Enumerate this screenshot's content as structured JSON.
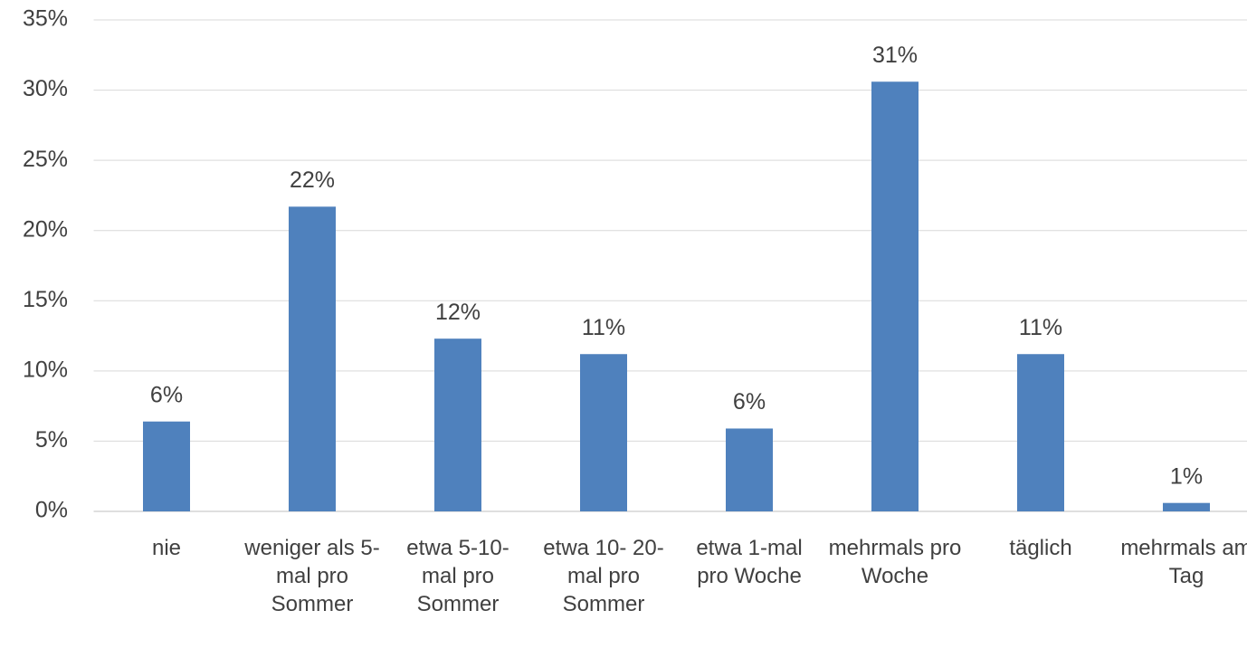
{
  "chart_data": {
    "type": "bar",
    "categories": [
      "nie",
      "weniger als 5- mal pro Sommer",
      "etwa 5-10- mal pro Sommer",
      "etwa 10- 20- mal pro Sommer",
      "etwa 1-mal pro Woche",
      "mehrmals pro Woche",
      "täglich",
      "mehrmals am Tag"
    ],
    "values": [
      6.4,
      21.7,
      12.3,
      11.2,
      5.9,
      30.6,
      11.2,
      0.6
    ],
    "value_labels": [
      "6%",
      "22%",
      "12%",
      "11%",
      "6%",
      "31%",
      "11%",
      "1%"
    ],
    "color": "#4f81bd",
    "ylim": [
      0,
      35
    ],
    "yticks": [
      {
        "value": 0,
        "label": "0%"
      },
      {
        "value": 5,
        "label": "5%"
      },
      {
        "value": 10,
        "label": "10%"
      },
      {
        "value": 15,
        "label": "15%"
      },
      {
        "value": 20,
        "label": "20%"
      },
      {
        "value": 25,
        "label": "25%"
      },
      {
        "value": 30,
        "label": "30%"
      },
      {
        "value": 35,
        "label": "35%"
      }
    ],
    "grid": true
  }
}
